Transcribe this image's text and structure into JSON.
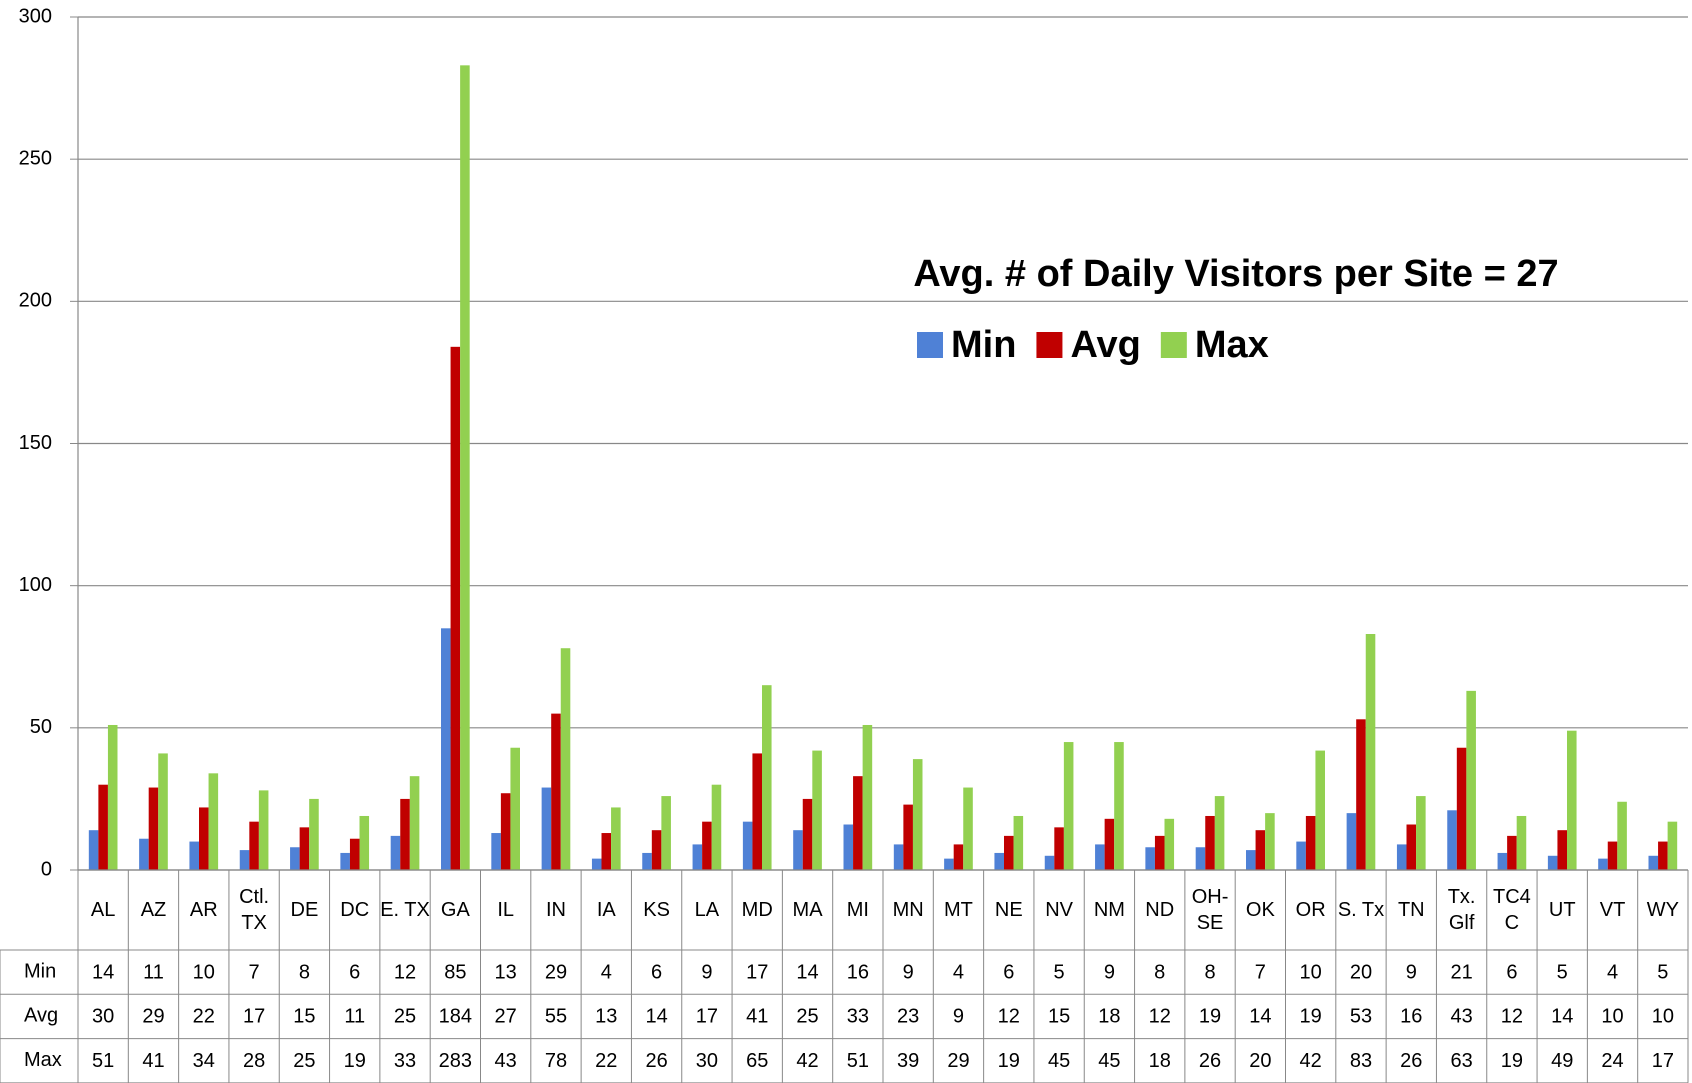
{
  "chart_data": {
    "type": "bar",
    "annotation": "Avg. # of Daily Visitors per Site = 27",
    "categories": [
      "AL",
      "AZ",
      "AR",
      "Ctl. TX",
      "DE",
      "DC",
      "E. TX",
      "GA",
      "IL",
      "IN",
      "IA",
      "KS",
      "LA",
      "MD",
      "MA",
      "MI",
      "MN",
      "MT",
      "NE",
      "NV",
      "NM",
      "ND",
      "OH-SE",
      "OK",
      "OR",
      "S. Tx",
      "TN",
      "Tx. Glf",
      "TC4C",
      "UT",
      "VT",
      "WY"
    ],
    "series": [
      {
        "name": "Min",
        "color": "#4f81d6",
        "values": [
          14,
          11,
          10,
          7,
          8,
          6,
          12,
          85,
          13,
          29,
          4,
          6,
          9,
          17,
          14,
          16,
          9,
          4,
          6,
          5,
          9,
          8,
          8,
          7,
          10,
          20,
          9,
          21,
          6,
          5,
          4,
          5
        ]
      },
      {
        "name": "Avg",
        "color": "#c00000",
        "values": [
          30,
          29,
          22,
          17,
          15,
          11,
          25,
          184,
          27,
          55,
          13,
          14,
          17,
          41,
          25,
          33,
          23,
          9,
          12,
          15,
          18,
          12,
          19,
          14,
          19,
          53,
          16,
          43,
          12,
          14,
          10,
          10
        ]
      },
      {
        "name": "Max",
        "color": "#92d050",
        "values": [
          51,
          41,
          34,
          28,
          25,
          19,
          33,
          283,
          43,
          78,
          22,
          26,
          30,
          65,
          42,
          51,
          39,
          29,
          19,
          45,
          45,
          18,
          26,
          20,
          42,
          83,
          26,
          63,
          19,
          49,
          24,
          17
        ]
      }
    ],
    "ylim": [
      0,
      300
    ],
    "yticks": [
      0,
      50,
      100,
      150,
      200,
      250,
      300
    ],
    "grid": true,
    "data_table": true
  }
}
